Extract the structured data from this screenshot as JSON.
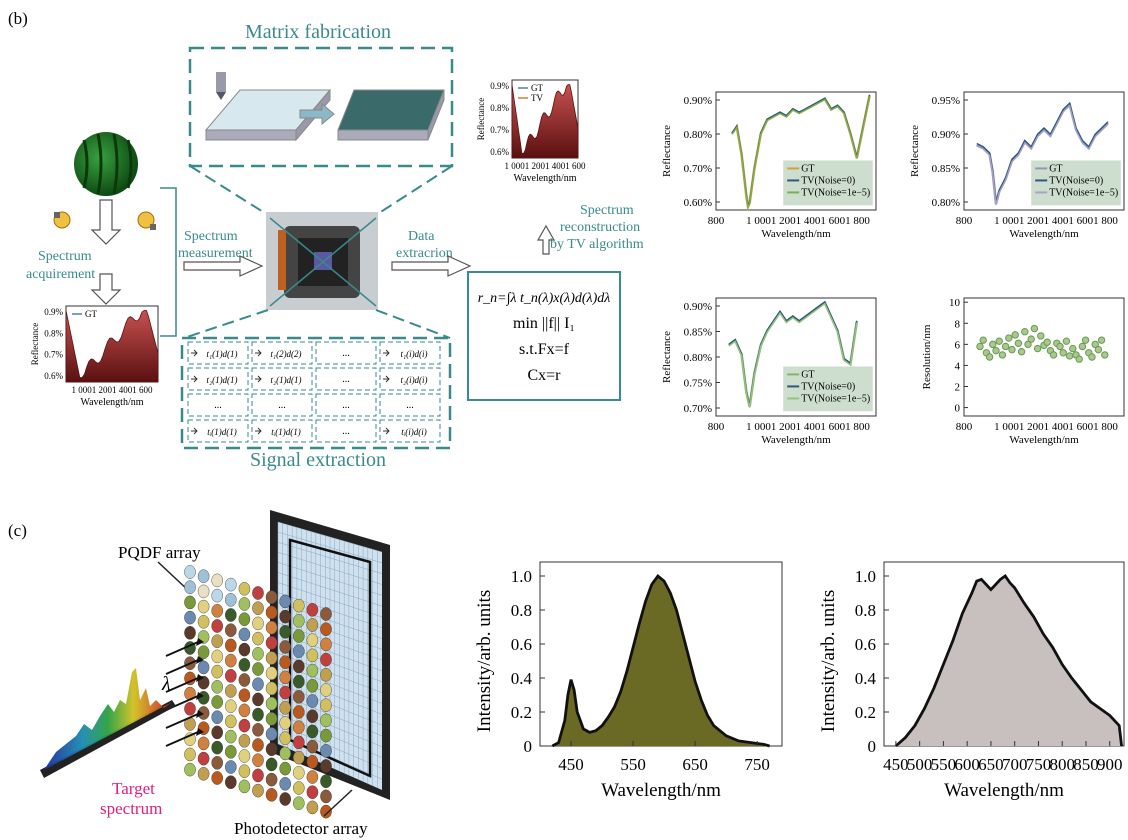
{
  "labels": {
    "panel_b": "(b)",
    "panel_c": "(c)",
    "matrix_fabrication": "Matrix fabrication",
    "spectrum_acquirement": "Spectrum acquirement",
    "spectrum_measurement": "Spectrum measurement",
    "data_extraction": "Data extracrion",
    "spectrum_reconstruction": "Spectrum reconstruction by TV algorithm",
    "signal_extraction": "Signal extraction",
    "pqdf_array": "PQDF array",
    "photodetector_array": "Photodetector array",
    "target_spectrum": "Target spectrum",
    "lambda": "λ",
    "grid_dots": "..."
  },
  "equations": {
    "line1": "r_n=∫λ t_n(λ)x(λ)d(λ)dλ",
    "line2": "min ||f|| I₁",
    "line3": "s.t.Fx=f",
    "line4": "Cx=r"
  },
  "grid_cells": [
    [
      "t₁(1)d(1)",
      "t₁(2)d(2)",
      "...",
      "t₁(i)d(i)"
    ],
    [
      "t₂(1)d(1)",
      "t₂(1)d(1)",
      "...",
      "t₂(i)d(i)"
    ],
    [
      "...",
      "...",
      "...",
      "..."
    ],
    [
      "tᵢ(1)d(1)",
      "tᵢ(1)d(1)",
      "...",
      "tᵢ(i)d(i)"
    ]
  ],
  "colors": {
    "teal": "#3a8a8c",
    "reflect_fill": "#8b1f1f",
    "olive": "#6b6a24",
    "gray_fill": "#c8bfbf"
  },
  "chart_data": [
    {
      "id": "small-gt-tv",
      "type": "area",
      "ylabel": "Reflectance",
      "xlabel": "Wavelength/nm",
      "yticks": [
        "0.9%",
        "0.8%",
        "0.7%",
        "0.6%"
      ],
      "xticks": [
        "1 0001 2001 4001 600"
      ],
      "series": [
        {
          "name": "GT"
        },
        {
          "name": "TV"
        }
      ]
    },
    {
      "id": "small-gt",
      "type": "area",
      "ylabel": "Reflectance",
      "xlabel": "Wavelength/nm",
      "yticks": [
        "0.9%",
        "0.8%",
        "0.7%",
        "0.6%"
      ],
      "xticks": [
        "1 0001 2001 4001 600"
      ],
      "series": [
        {
          "name": "GT"
        }
      ]
    },
    {
      "id": "refl-1",
      "type": "line",
      "ylabel": "Reflectance",
      "xlabel": "Wavelength/nm",
      "yticks": [
        "0.90%",
        "0.80%",
        "0.70%",
        "0.60%"
      ],
      "xticks": [
        "800",
        "1 0001 2001 4001 6001 800"
      ],
      "series": [
        {
          "name": "GT"
        },
        {
          "name": "TV(Noise=0)"
        },
        {
          "name": "TV(Noise=1e−5)"
        }
      ],
      "x": [
        900,
        930,
        960,
        990,
        1000,
        1010,
        1040,
        1080,
        1120,
        1160,
        1200,
        1240,
        1280,
        1320,
        1360,
        1400,
        1440,
        1480,
        1520,
        1560,
        1600,
        1640,
        1680,
        1720,
        1760
      ],
      "y": [
        0.8,
        0.82,
        0.74,
        0.62,
        0.59,
        0.6,
        0.7,
        0.8,
        0.84,
        0.85,
        0.86,
        0.85,
        0.87,
        0.86,
        0.87,
        0.88,
        0.89,
        0.9,
        0.87,
        0.88,
        0.86,
        0.8,
        0.73,
        0.82,
        0.91
      ]
    },
    {
      "id": "refl-2",
      "type": "line",
      "ylabel": "Reflectance",
      "xlabel": "Wavelength/nm",
      "yticks": [
        "0.95%",
        "0.90%",
        "0.85%",
        "0.80%"
      ],
      "xticks": [
        "800",
        "1 0001 2001 4001 6001 800"
      ],
      "series": [
        {
          "name": "GT"
        },
        {
          "name": "TV(Noise=0)"
        },
        {
          "name": "TV(Noise=1e−5)"
        }
      ],
      "x": [
        880,
        920,
        960,
        980,
        1000,
        1020,
        1060,
        1100,
        1140,
        1180,
        1220,
        1260,
        1300,
        1340,
        1380,
        1420,
        1460,
        1500,
        1540,
        1580,
        1620,
        1660,
        1700
      ],
      "y": [
        0.875,
        0.87,
        0.86,
        0.83,
        0.78,
        0.8,
        0.82,
        0.85,
        0.86,
        0.88,
        0.87,
        0.89,
        0.9,
        0.89,
        0.91,
        0.93,
        0.94,
        0.9,
        0.88,
        0.87,
        0.89,
        0.9,
        0.91
      ]
    },
    {
      "id": "refl-3",
      "type": "line",
      "ylabel": "Reflectance",
      "xlabel": "Wavelength/nm",
      "yticks": [
        "0.90%",
        "0.85%",
        "0.80%",
        "0.75%",
        "0.70%"
      ],
      "xticks": [
        "800",
        "1 0001 2001 4001 6001 800"
      ],
      "series": [
        {
          "name": "GT"
        },
        {
          "name": "TV(Noise=0)"
        },
        {
          "name": "TV(Noise=1e−5)"
        }
      ],
      "x": [
        880,
        920,
        960,
        990,
        1010,
        1040,
        1080,
        1120,
        1160,
        1200,
        1240,
        1280,
        1320,
        1360,
        1400,
        1440,
        1480,
        1520,
        1560,
        1600,
        1640,
        1680
      ],
      "y": [
        0.83,
        0.84,
        0.81,
        0.73,
        0.7,
        0.77,
        0.83,
        0.86,
        0.88,
        0.9,
        0.88,
        0.89,
        0.88,
        0.89,
        0.9,
        0.91,
        0.92,
        0.89,
        0.86,
        0.8,
        0.79,
        0.88
      ]
    },
    {
      "id": "resolution",
      "type": "scatter",
      "ylabel": "Resolution/nm",
      "xlabel": "Wavelength/nm",
      "yticks": [
        "10",
        "8",
        "6",
        "4",
        "2",
        "0"
      ],
      "xticks": [
        "800",
        "1 0001 2001 4001 6001 800"
      ],
      "x": [
        900,
        920,
        940,
        960,
        980,
        1000,
        1020,
        1040,
        1060,
        1080,
        1100,
        1120,
        1140,
        1160,
        1180,
        1200,
        1220,
        1240,
        1260,
        1280,
        1300,
        1320,
        1340,
        1360,
        1380,
        1400,
        1420,
        1440,
        1460,
        1480,
        1500,
        1520,
        1540,
        1560,
        1580,
        1600,
        1620,
        1640,
        1660,
        1680
      ],
      "y": [
        5.8,
        6.4,
        5.2,
        4.8,
        6.0,
        5.4,
        6.3,
        5.0,
        5.8,
        6.6,
        5.5,
        6.9,
        6.1,
        5.3,
        7.2,
        6.0,
        6.5,
        7.5,
        5.6,
        6.8,
        5.9,
        6.2,
        5.4,
        5.0,
        6.1,
        5.8,
        5.2,
        6.3,
        4.9,
        5.6,
        5.0,
        4.6,
        5.8,
        6.4,
        5.2,
        4.8,
        6.0,
        5.5,
        6.4,
        5.0
      ]
    },
    {
      "id": "intensity-1",
      "type": "area",
      "ylabel": "Intensity/arb. units",
      "xlabel": "Wavelength/nm",
      "yticks": [
        "1.0",
        "0.8",
        "0.6",
        "0.4",
        "0.2",
        "0"
      ],
      "xticks": [
        "450",
        "550",
        "650",
        "750"
      ],
      "ylim": [
        0,
        1.0
      ],
      "x": [
        420,
        430,
        440,
        445,
        450,
        455,
        460,
        470,
        480,
        490,
        500,
        510,
        520,
        530,
        540,
        550,
        560,
        570,
        580,
        590,
        600,
        610,
        620,
        630,
        640,
        650,
        660,
        670,
        680,
        700,
        720,
        740,
        760,
        770
      ],
      "y": [
        0.0,
        0.02,
        0.15,
        0.3,
        0.39,
        0.33,
        0.2,
        0.1,
        0.08,
        0.09,
        0.12,
        0.17,
        0.23,
        0.32,
        0.44,
        0.58,
        0.72,
        0.85,
        0.95,
        1.0,
        0.97,
        0.9,
        0.8,
        0.66,
        0.52,
        0.38,
        0.27,
        0.18,
        0.12,
        0.06,
        0.03,
        0.02,
        0.01,
        0.0
      ]
    },
    {
      "id": "intensity-2",
      "type": "area",
      "ylabel": "Intensity/arb. units",
      "xlabel": "Wavelength/nm",
      "yticks": [
        "1.0",
        "0.8",
        "0.6",
        "0.4",
        "0.2",
        "0"
      ],
      "xticks": [
        "450",
        "500",
        "550",
        "600",
        "650",
        "700",
        "750",
        "800",
        "850",
        "900"
      ],
      "ylim": [
        0,
        1.0
      ],
      "x": [
        450,
        470,
        490,
        510,
        530,
        550,
        570,
        590,
        610,
        620,
        630,
        650,
        670,
        680,
        690,
        700,
        720,
        740,
        760,
        780,
        800,
        820,
        840,
        860,
        880,
        900,
        920,
        925
      ],
      "y": [
        0.0,
        0.05,
        0.12,
        0.22,
        0.34,
        0.48,
        0.62,
        0.78,
        0.9,
        0.97,
        0.98,
        0.92,
        0.98,
        1.0,
        0.96,
        0.93,
        0.84,
        0.76,
        0.66,
        0.58,
        0.48,
        0.4,
        0.33,
        0.26,
        0.22,
        0.18,
        0.12,
        0.0
      ]
    }
  ]
}
